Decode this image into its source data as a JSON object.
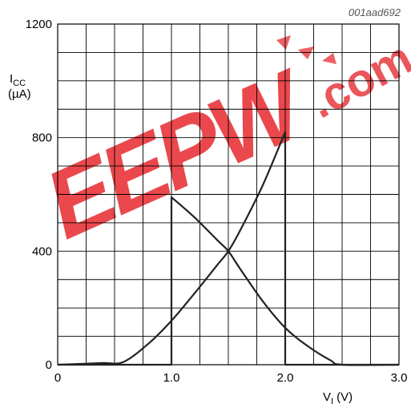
{
  "figure_code": "001aad692",
  "watermark": {
    "brand": "EEPW",
    "domain": ".com",
    "color": "#e8383d"
  },
  "chart_data": {
    "type": "line",
    "title": "",
    "xlabel": {
      "main": "V",
      "sub": "I",
      "unit": "(V)"
    },
    "ylabel": {
      "main": "I",
      "sub": "CC",
      "unit": "(µA)"
    },
    "xlim": [
      0,
      3.0
    ],
    "ylim": [
      0,
      1200
    ],
    "x_ticks": [
      0,
      1.0,
      2.0,
      3.0
    ],
    "x_tick_labels": [
      "0",
      "1.0",
      "2.0",
      "3.0"
    ],
    "y_ticks": [
      0,
      400,
      800,
      1200
    ],
    "y_tick_labels": [
      "0",
      "400",
      "800",
      "1200"
    ],
    "grid": true,
    "grid_x_step": 0.25,
    "grid_y_step": 100,
    "line_color": "#222222",
    "series": [
      {
        "points": [
          [
            0,
            0
          ],
          [
            0.2,
            3
          ],
          [
            0.4,
            6
          ],
          [
            0.58,
            10
          ],
          [
            0.8,
            75
          ],
          [
            1.0,
            155
          ],
          [
            1.2,
            250
          ],
          [
            1.4,
            350
          ],
          [
            1.5,
            400
          ],
          [
            1.6,
            470
          ],
          [
            1.8,
            630
          ],
          [
            2.0,
            820
          ],
          [
            2.0,
            0
          ],
          [
            2.5,
            0
          ],
          [
            3.0,
            0
          ]
        ]
      },
      {
        "points": [
          [
            0,
            0
          ],
          [
            0.5,
            0
          ],
          [
            1.0,
            0
          ],
          [
            1.0,
            590
          ],
          [
            1.2,
            520
          ],
          [
            1.4,
            440
          ],
          [
            1.5,
            400
          ],
          [
            1.6,
            340
          ],
          [
            1.8,
            225
          ],
          [
            2.0,
            130
          ],
          [
            2.2,
            65
          ],
          [
            2.4,
            15
          ],
          [
            2.5,
            0
          ],
          [
            3.0,
            0
          ]
        ]
      }
    ]
  }
}
